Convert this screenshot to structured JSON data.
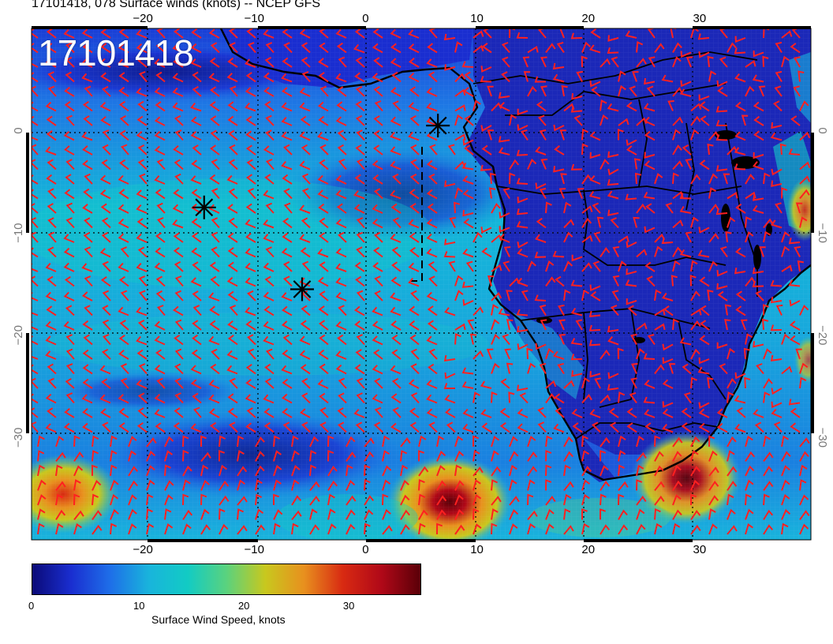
{
  "header": {
    "title": "17101418, 078 Surface winds (knots) -- NCEP GFS"
  },
  "map": {
    "stamp": "17101418",
    "lon_range": [
      -30,
      40
    ],
    "lat_range": [
      -40,
      10
    ],
    "lon_ticks": [
      "−20",
      "−10",
      "0",
      "10",
      "20",
      "30"
    ],
    "lat_ticks_left": [
      "0",
      "−10",
      "−20",
      "−30"
    ],
    "lat_ticks_right": [
      "0",
      "−10",
      "−20",
      "−30"
    ],
    "storm_markers": [
      {
        "lon": -14.5,
        "lat": -7.5
      },
      {
        "lon": -5.7,
        "lat": -15.5
      },
      {
        "lon": 6.5,
        "lat": 0.5
      }
    ],
    "wind_barb_color": "#ff2020",
    "coast_color": "#000000"
  },
  "colorbar": {
    "ticks": [
      "0",
      "10",
      "20",
      "30"
    ],
    "label": "Surface Wind Speed, knots",
    "range": [
      0,
      37
    ],
    "stops": [
      "#0a0a78",
      "#1a2ed0",
      "#1e6ee8",
      "#19b4dc",
      "#12cbc4",
      "#5ad27e",
      "#c8c81e",
      "#e8901e",
      "#d82a12",
      "#b00818",
      "#5a0008"
    ]
  }
}
